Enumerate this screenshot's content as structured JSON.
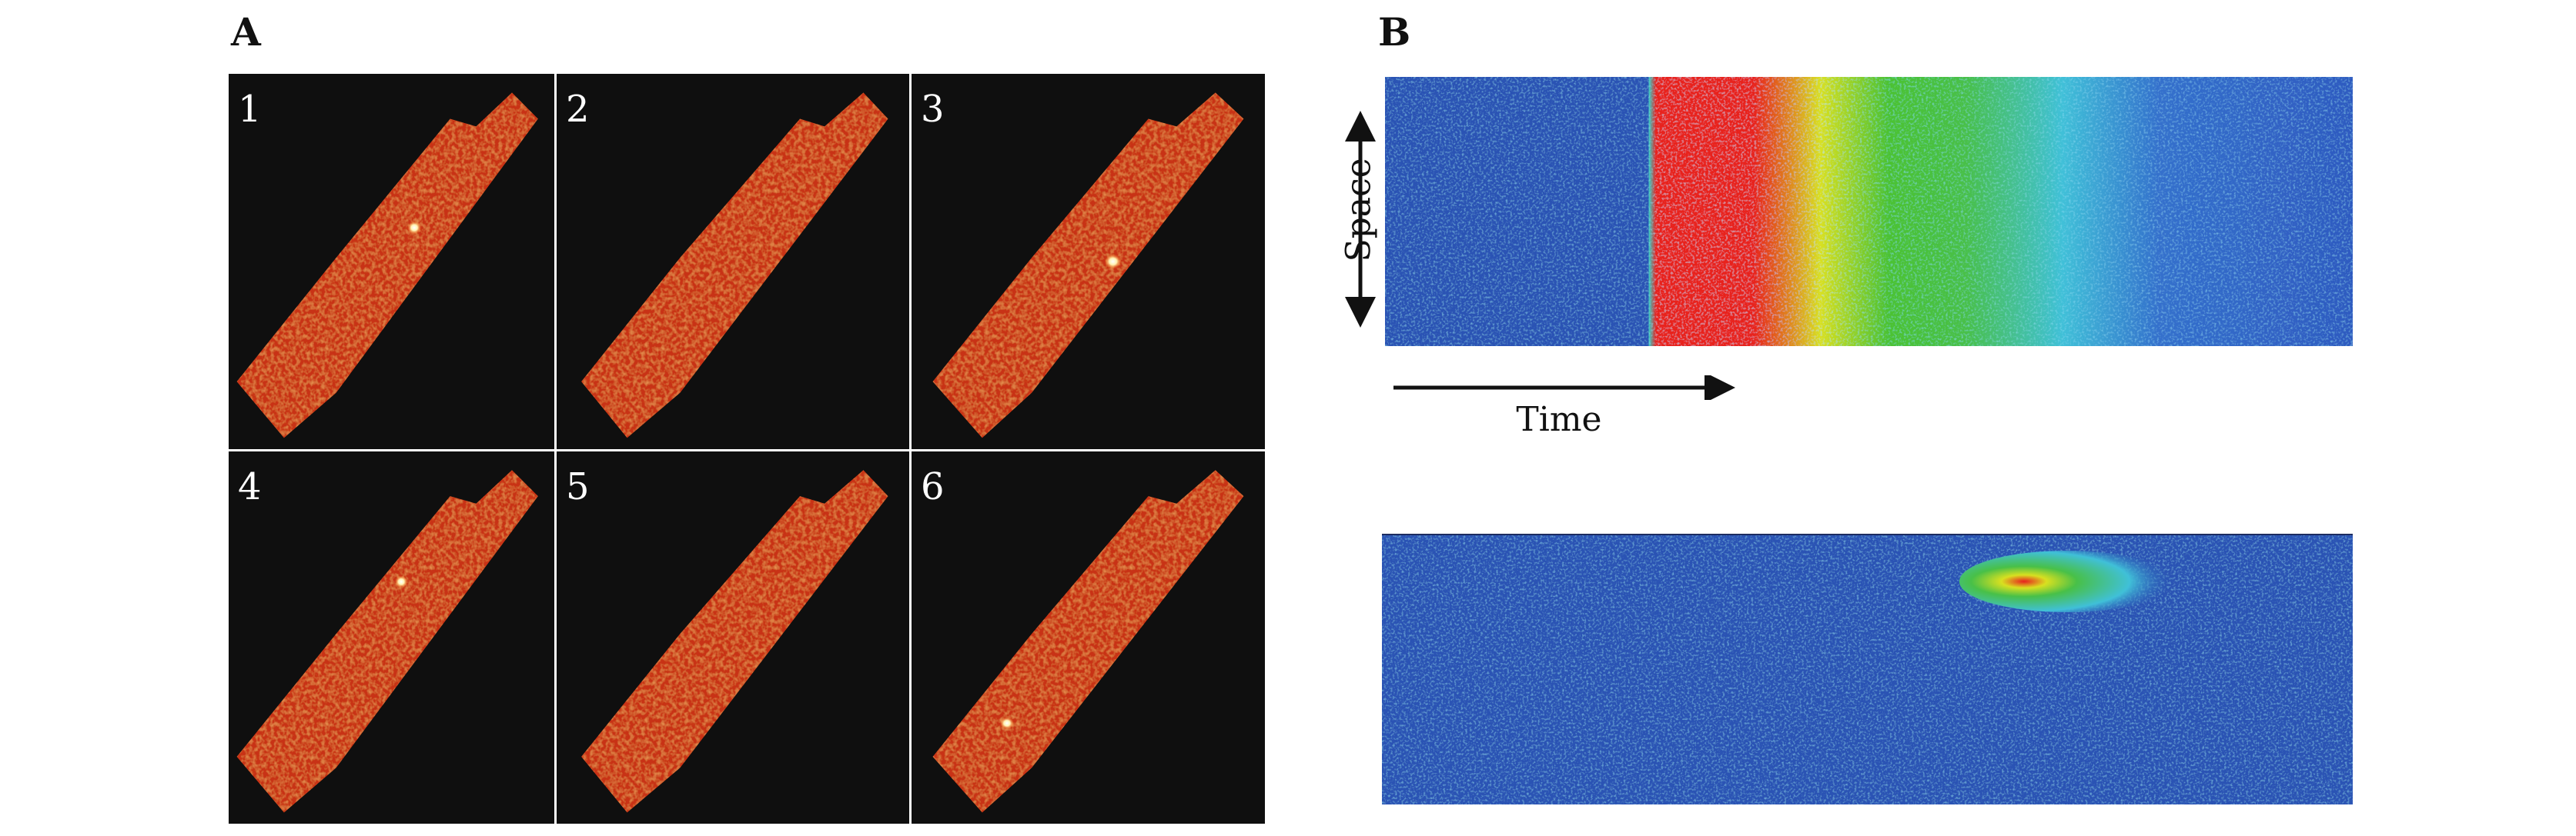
{
  "panel_a": {
    "label": "A",
    "frames": [
      {
        "number": "1",
        "has_spark": true
      },
      {
        "number": "2",
        "has_spark": false
      },
      {
        "number": "3",
        "has_spark": true
      },
      {
        "number": "4",
        "has_spark": true
      },
      {
        "number": "5",
        "has_spark": false
      },
      {
        "number": "6",
        "has_spark": true
      }
    ],
    "colors": {
      "background": "#0f0f0f",
      "cell": "#c83214",
      "spark": "#ffffff"
    }
  },
  "panel_b": {
    "label": "B",
    "y_axis_label": "Space",
    "x_axis_label": "Time",
    "colors": {
      "low": "#2a4fb0",
      "mid": "#3fc23a",
      "high": "#e8201e",
      "cyan": "#3fc0e8"
    }
  }
}
